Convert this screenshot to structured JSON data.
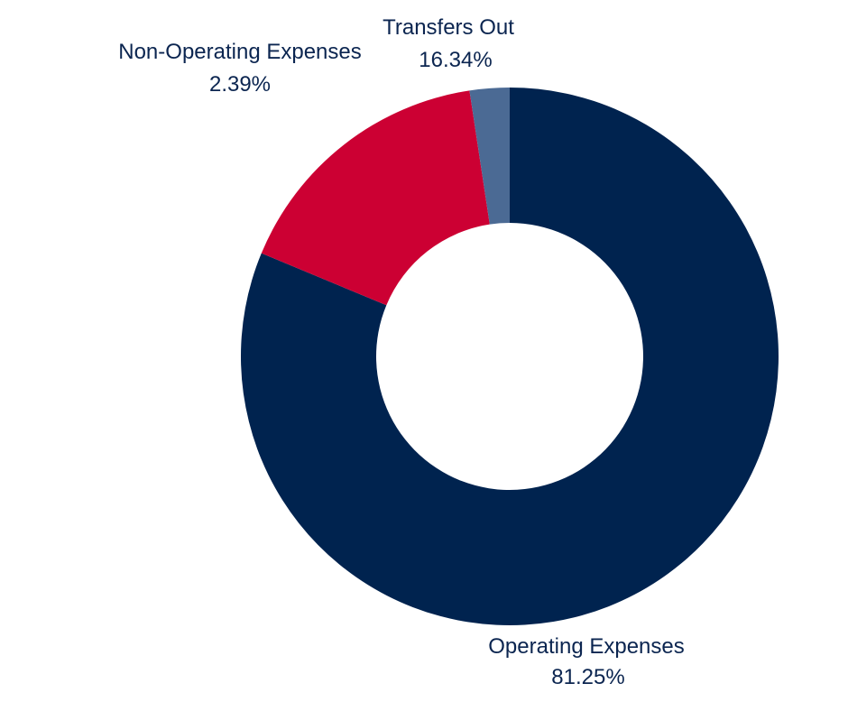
{
  "chart_data": {
    "type": "pie",
    "donut": true,
    "categories": [
      "Operating Expenses",
      "Transfers Out",
      "Non-Operating Expenses"
    ],
    "values": [
      81.25,
      16.34,
      2.39
    ],
    "value_labels": [
      "81.25%",
      "16.34%",
      "2.39%"
    ],
    "colors": [
      "#00234f",
      "#cc0033",
      "#4b6a94"
    ],
    "label_color": "#0b2550",
    "legend": "none"
  }
}
